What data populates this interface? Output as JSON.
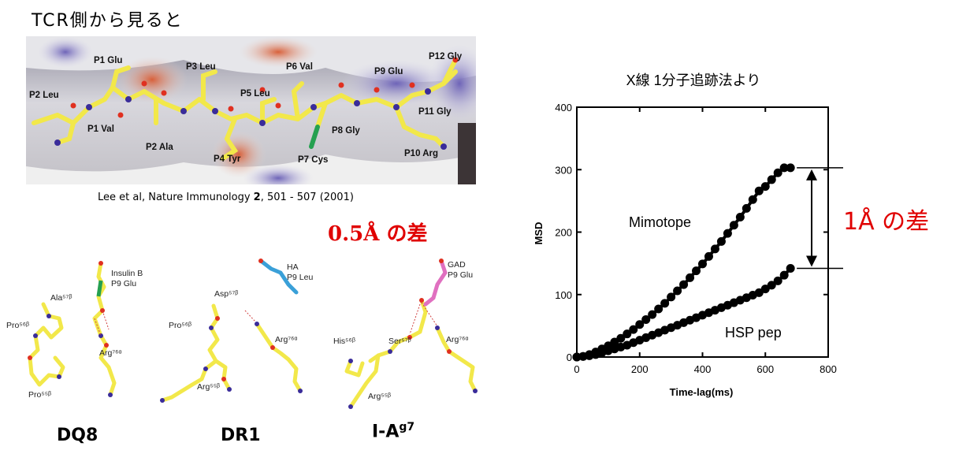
{
  "header": {
    "title": "TCR側から見ると"
  },
  "peptide": {
    "residues": [
      "P1 Glu",
      "P2 Leu",
      "P1 Val",
      "P2 Ala",
      "P3 Leu",
      "P4 Tyr",
      "P5 Leu",
      "P6 Val",
      "P7 Cys",
      "P8 Gly",
      "P9 Glu",
      "P10 Arg",
      "P11 Gly",
      "P12 Gly"
    ]
  },
  "citation": {
    "authors": "Lee et al, Nature Immunology ",
    "volume": "2",
    "pages": ", 501 - 507 (2001)"
  },
  "annotations": {
    "diff_05": "0.5Å の差",
    "diff_1": "1Å の差"
  },
  "structures": [
    {
      "name": "DQ8",
      "sup": "",
      "labels": [
        "Insulin B",
        "P9 Glu",
        "Ala⁵⁷ᵝ",
        "Pro⁵⁶ᵝ",
        "Arg⁷⁶ᵅ",
        "Pro⁵⁵ᵝ"
      ]
    },
    {
      "name": "DR1",
      "sup": "",
      "labels": [
        "HA",
        "P9 Leu",
        "Asp⁵⁷ᵝ",
        "Pro⁵⁶ᵝ",
        "Arg⁷⁶ᵅ",
        "Arg⁵⁵ᵝ"
      ]
    },
    {
      "name": "I-A",
      "sup": "g7",
      "labels": [
        "GAD",
        "P9 Glu",
        "His⁵⁶ᵝ",
        "Ser⁵⁷ᵝ",
        "Arg⁷⁶ᵅ",
        "Arg⁵⁵ᵝ"
      ]
    }
  ],
  "colors": {
    "accent_red": "#e00000",
    "peptide_yellow": "#f2e84a",
    "nitrogen": "#3a2c9a",
    "oxygen": "#e03020"
  },
  "chart_data": {
    "type": "scatter",
    "title": "X線 1分子追跡法より",
    "xlabel": "Time-lag(ms)",
    "ylabel": "MSD",
    "xlim": [
      0,
      800
    ],
    "ylim": [
      0,
      400
    ],
    "xticks": [
      0,
      200,
      400,
      600,
      800
    ],
    "yticks": [
      0,
      100,
      200,
      300,
      400
    ],
    "series": [
      {
        "name": "Mimotope",
        "x": [
          0,
          20,
          40,
          60,
          80,
          100,
          120,
          140,
          160,
          180,
          200,
          220,
          240,
          260,
          280,
          300,
          320,
          340,
          360,
          380,
          400,
          420,
          440,
          460,
          480,
          500,
          520,
          540,
          560,
          580,
          600,
          620,
          640,
          660,
          680
        ],
        "y": [
          0,
          1,
          4,
          8,
          13,
          18,
          24,
          30,
          37,
          44,
          52,
          60,
          68,
          77,
          86,
          96,
          106,
          116,
          127,
          138,
          149,
          161,
          173,
          185,
          198,
          211,
          224,
          238,
          252,
          266,
          273,
          284,
          295,
          303,
          303
        ]
      },
      {
        "name": "HSP pep",
        "x": [
          0,
          20,
          40,
          60,
          80,
          100,
          120,
          140,
          160,
          180,
          200,
          220,
          240,
          260,
          280,
          300,
          320,
          340,
          360,
          380,
          400,
          420,
          440,
          460,
          480,
          500,
          520,
          540,
          560,
          580,
          600,
          620,
          640,
          660,
          680
        ],
        "y": [
          0,
          1,
          2,
          4,
          7,
          10,
          13,
          16,
          19,
          23,
          27,
          31,
          35,
          39,
          43,
          47,
          51,
          55,
          59,
          63,
          67,
          71,
          75,
          79,
          83,
          87,
          91,
          95,
          99,
          103,
          109,
          115,
          122,
          131,
          142
        ]
      }
    ],
    "bracket": {
      "from": 142,
      "to": 303
    }
  }
}
